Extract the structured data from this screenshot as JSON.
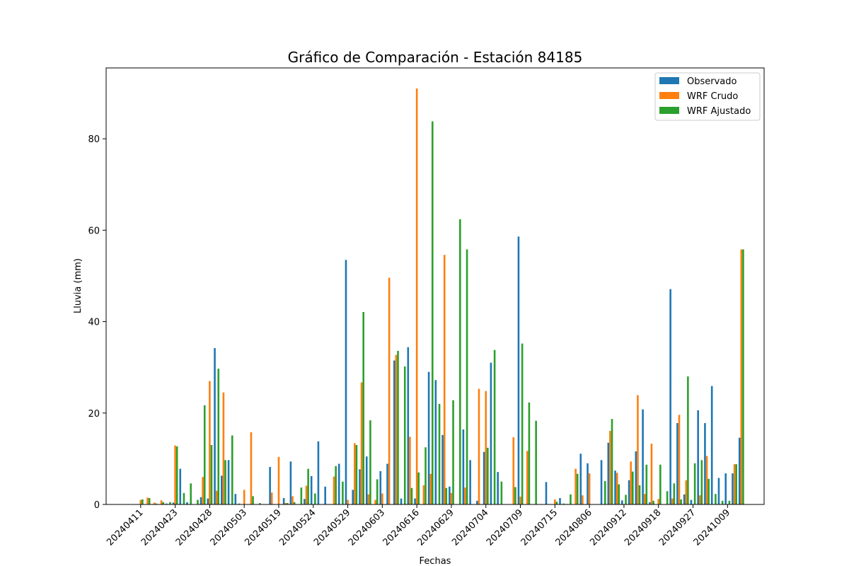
{
  "chart_data": {
    "type": "bar",
    "title": "Gráfico de Comparación - Estación 84185",
    "xlabel": "Fechas",
    "ylabel": "Lluvia (mm)",
    "ylim": [
      0,
      95.5
    ],
    "yticks": [
      0,
      20,
      40,
      60,
      80
    ],
    "grid": false,
    "legend_position": "top-right",
    "tick_labels": [
      "20240411",
      "20240423",
      "20240428",
      "20240503",
      "20240519",
      "20240524",
      "20240529",
      "20240603",
      "20240616",
      "20240629",
      "20240704",
      "20240709",
      "20240715",
      "20240806",
      "20240912",
      "20240918",
      "20240927",
      "20241009"
    ],
    "tick_every": 5,
    "series": [
      {
        "name": "Observado",
        "color": "#1f77b4",
        "values": [
          0,
          0,
          0.1,
          0,
          0.2,
          0.4,
          7.8,
          0.5,
          0,
          1.6,
          1.3,
          34.2,
          6.3,
          9.7,
          2.3,
          0,
          0,
          0,
          0,
          8.2,
          0,
          1.4,
          9.4,
          0,
          1.2,
          6.2,
          13.8,
          3.9,
          0,
          8.9,
          53.5,
          3.2,
          7.7,
          10.5,
          0,
          7.3,
          8.9,
          31.5,
          1.3,
          34.4,
          1.3,
          0,
          29,
          27.2,
          15.2,
          3.9,
          0,
          16.4,
          9.7,
          0.8,
          11.5,
          31,
          7.1,
          0,
          0,
          58.6,
          0,
          0,
          0,
          4.9,
          0,
          1.4,
          0.1,
          0,
          11.1,
          9,
          0,
          9.7,
          13.5,
          7.4,
          0.9,
          5.3,
          11.6,
          20.8,
          0.5,
          0,
          0,
          47.1,
          17.8,
          2.2,
          1,
          20.6,
          17.8,
          25.9,
          5.8,
          6.8,
          6.8,
          14.6
        ]
      },
      {
        "name": "WRF Crudo",
        "color": "#ff7f0e",
        "values": [
          1,
          1.5,
          0.4,
          0.9,
          0,
          12.9,
          0,
          0,
          0,
          6,
          27,
          3,
          24.5,
          0,
          0,
          3.2,
          15.8,
          0,
          0,
          2.6,
          10.4,
          0.3,
          1.8,
          0,
          4.1,
          0,
          0,
          0,
          6.1,
          0,
          1,
          13.4,
          26.7,
          2.2,
          1,
          2.4,
          49.6,
          32.7,
          0,
          14.8,
          91,
          4.2,
          6.7,
          0,
          54.6,
          2.5,
          0,
          3.7,
          0,
          25.3,
          24.8,
          0,
          0,
          0,
          14.7,
          1.7,
          11.7,
          0,
          0,
          0,
          1.1,
          0,
          0,
          7.8,
          2,
          6.8,
          0,
          0,
          16.1,
          6.9,
          0,
          9.4,
          23.9,
          2.3,
          13.3,
          1.2,
          0,
          1.3,
          19.6,
          5.3,
          0,
          2,
          10.6,
          0,
          0,
          0,
          8.8,
          55.8
        ]
      },
      {
        "name": "WRF Ajustado",
        "color": "#2ca02c",
        "values": [
          1.1,
          1.4,
          0.2,
          0.5,
          0.5,
          12.7,
          2.5,
          4.6,
          1,
          21.7,
          13,
          29.7,
          9.7,
          15.1,
          0.2,
          0,
          1.8,
          0.3,
          0,
          0,
          0,
          0.3,
          0.5,
          3.7,
          7.8,
          2.4,
          0,
          0,
          8.4,
          5,
          0,
          13,
          42.1,
          18.4,
          5.5,
          0,
          0,
          33.6,
          30.2,
          3.6,
          7,
          12.5,
          83.8,
          22,
          3.6,
          22.8,
          62.4,
          55.8,
          0,
          0,
          12.4,
          33.8,
          5,
          0,
          3.8,
          35.2,
          22.3,
          18.3,
          0,
          0,
          0.6,
          0.2,
          2.2,
          6.7,
          0,
          0,
          0,
          5.1,
          18.7,
          4.4,
          2.1,
          7.2,
          4.2,
          8.7,
          0.8,
          8.7,
          2.9,
          4.6,
          1.1,
          28,
          9,
          9.7,
          5.6,
          2.3,
          0.8,
          0.8,
          8.8,
          55.8
        ]
      }
    ]
  }
}
